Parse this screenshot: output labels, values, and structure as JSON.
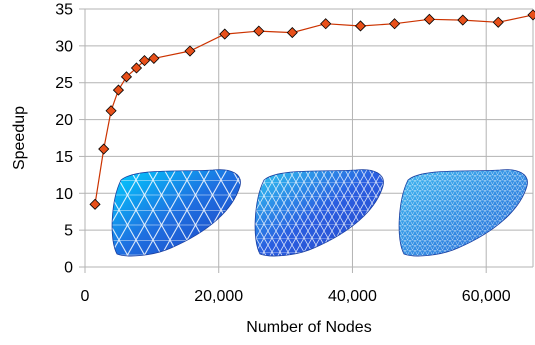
{
  "chart_data": {
    "type": "line",
    "title": "",
    "xlabel": "Number of Nodes",
    "ylabel": "Speedup",
    "xlim": [
      0,
      67000
    ],
    "ylim": [
      0,
      35
    ],
    "xticks": [
      0,
      20000,
      40000,
      60000
    ],
    "xtick_labels": [
      "0",
      "20,000",
      "40,000",
      "60,000"
    ],
    "yticks": [
      0,
      5,
      10,
      15,
      20,
      25,
      30,
      35
    ],
    "ytick_labels": [
      "0",
      "5",
      "10",
      "15",
      "20",
      "25",
      "30",
      "35"
    ],
    "grid": "both",
    "legend": "none",
    "series": [
      {
        "color": "#cc3300",
        "marker_color": "#e8501a",
        "marker": "diamond",
        "x": [
          1500,
          2800,
          3900,
          5000,
          6200,
          7700,
          8900,
          10300,
          15700,
          20900,
          26000,
          31000,
          36000,
          41200,
          46300,
          51500,
          56500,
          61800,
          67000
        ],
        "y": [
          8.5,
          16.0,
          21.2,
          24.0,
          25.8,
          27.0,
          28.0,
          28.3,
          29.3,
          31.6,
          32.0,
          31.8,
          33.0,
          32.7,
          33.0,
          33.6,
          33.5,
          33.2,
          34.2
        ]
      }
    ],
    "insets": [
      {
        "name": "coarse mesh",
        "colors": [
          "#1e4fc8",
          "#00c8ff"
        ]
      },
      {
        "name": "medium mesh",
        "colors": [
          "#2856d8",
          "#20c8f0"
        ]
      },
      {
        "name": "fine mesh",
        "colors": [
          "#2a6ad8",
          "#40b8f0"
        ]
      }
    ]
  }
}
